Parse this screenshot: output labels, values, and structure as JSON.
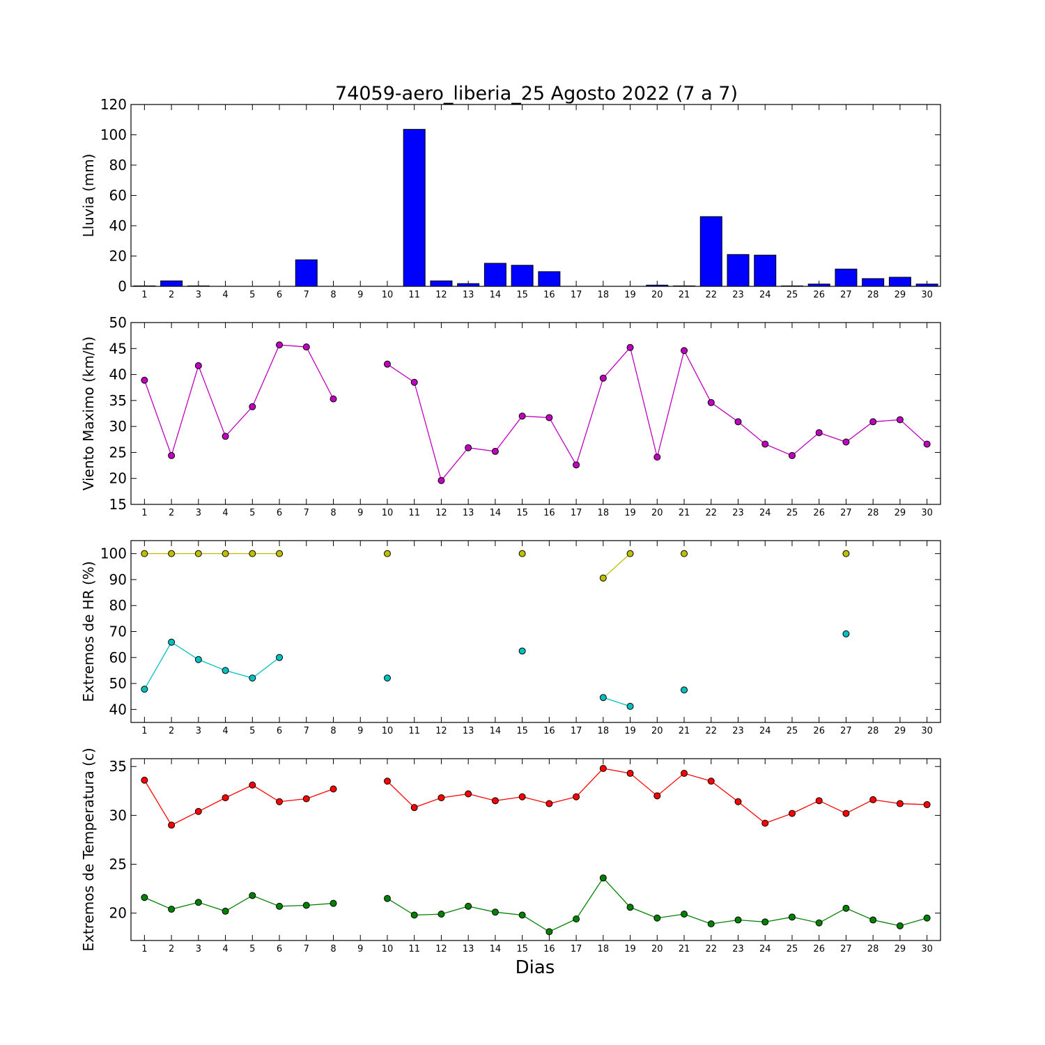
{
  "figure_title": "74059-aero_liberia_25 Agosto 2022  (7 a 7)",
  "xlabel": "Dias",
  "colors": {
    "rain": "#0000ff",
    "wind": "#bf00bf",
    "hr_max": "#bfbf00",
    "hr_min": "#00bfbf",
    "temp_max": "#ff0000",
    "temp_min": "#008000"
  },
  "chart_data": [
    {
      "type": "bar",
      "ylabel": "Lluvia (mm)",
      "ylim": [
        0,
        120
      ],
      "yticks": [
        0,
        20,
        40,
        60,
        80,
        100,
        120
      ],
      "x": [
        1,
        2,
        3,
        4,
        5,
        6,
        7,
        8,
        9,
        10,
        11,
        12,
        13,
        14,
        15,
        16,
        17,
        18,
        19,
        20,
        21,
        22,
        23,
        24,
        25,
        26,
        27,
        28,
        29,
        30
      ],
      "xtick_labels": [
        "1",
        "2",
        "3",
        "4",
        "5",
        "6",
        "7",
        "8",
        "9",
        "10",
        "11",
        "12",
        "13",
        "14",
        "15",
        "16",
        "17",
        "18",
        "19",
        "20",
        "21",
        "22",
        "23",
        "24",
        "25",
        "26",
        "27",
        "28",
        "29",
        "30"
      ],
      "values": [
        0.3,
        3.6,
        0.3,
        0,
        0,
        0,
        17.5,
        0,
        0,
        0,
        103.6,
        3.6,
        1.8,
        15.2,
        13.9,
        9.7,
        0,
        0,
        0,
        0.8,
        0.3,
        46.0,
        21.0,
        20.6,
        0.3,
        1.5,
        11.4,
        5.1,
        6.0,
        1.5
      ]
    },
    {
      "type": "line",
      "ylabel": "Viento Maximo (km/h)",
      "ylim": [
        15,
        50
      ],
      "yticks": [
        15,
        20,
        25,
        30,
        35,
        40,
        45,
        50
      ],
      "x": [
        1,
        2,
        3,
        4,
        5,
        6,
        7,
        8,
        9,
        10,
        11,
        12,
        13,
        14,
        15,
        16,
        17,
        18,
        19,
        20,
        21,
        22,
        23,
        24,
        25,
        26,
        27,
        28,
        29,
        30
      ],
      "xtick_labels": [
        "1",
        "2",
        "3",
        "4",
        "5",
        "6",
        "7",
        "8",
        "9",
        "10",
        "11",
        "12",
        "13",
        "14",
        "15",
        "16",
        "17",
        "18",
        "19",
        "20",
        "21",
        "22",
        "23",
        "24",
        "25",
        "26",
        "27",
        "28",
        "29",
        "30"
      ],
      "series": [
        {
          "values": [
            38.9,
            24.4,
            41.7,
            28.1,
            33.8,
            45.7,
            45.3,
            35.3,
            null,
            42.0,
            38.5,
            19.6,
            25.9,
            25.2,
            32.0,
            31.7,
            22.6,
            39.3,
            45.2,
            24.1,
            44.6,
            34.6,
            30.9,
            26.6,
            24.4,
            28.8,
            27.0,
            30.9,
            31.3,
            26.6
          ]
        }
      ]
    },
    {
      "type": "line",
      "ylabel": "Extremos de HR (%)",
      "ylim": [
        35,
        105
      ],
      "yticks": [
        40,
        50,
        60,
        70,
        80,
        90,
        100
      ],
      "x": [
        1,
        2,
        3,
        4,
        5,
        6,
        7,
        8,
        9,
        10,
        11,
        12,
        13,
        14,
        15,
        16,
        17,
        18,
        19,
        20,
        21,
        22,
        23,
        24,
        25,
        26,
        27,
        28,
        29,
        30
      ],
      "xtick_labels": [
        "1",
        "2",
        "3",
        "4",
        "5",
        "6",
        "7",
        "8",
        "9",
        "10",
        "11",
        "12",
        "13",
        "14",
        "15",
        "16",
        "17",
        "18",
        "19",
        "20",
        "21",
        "22",
        "23",
        "24",
        "25",
        "26",
        "27",
        "28",
        "29",
        "30"
      ],
      "series": [
        {
          "values": [
            100,
            100,
            100,
            100,
            100,
            100,
            null,
            null,
            null,
            100,
            null,
            null,
            null,
            null,
            100,
            null,
            null,
            90.6,
            100,
            null,
            100,
            null,
            null,
            null,
            null,
            null,
            100,
            null,
            null,
            null
          ]
        },
        {
          "values": [
            47.8,
            65.9,
            59.2,
            55.0,
            52.1,
            60.0,
            null,
            null,
            null,
            52.1,
            null,
            null,
            null,
            null,
            62.5,
            null,
            null,
            44.6,
            41.2,
            null,
            47.5,
            null,
            null,
            null,
            null,
            null,
            69.1,
            null,
            null,
            null
          ]
        }
      ]
    },
    {
      "type": "line",
      "ylabel": "Extremos de Temperatura (c)",
      "ylim": [
        17.2,
        35.8
      ],
      "yticks": [
        20,
        25,
        30,
        35
      ],
      "x": [
        1,
        2,
        3,
        4,
        5,
        6,
        7,
        8,
        9,
        10,
        11,
        12,
        13,
        14,
        15,
        16,
        17,
        18,
        19,
        20,
        21,
        22,
        23,
        24,
        25,
        26,
        27,
        28,
        29,
        30
      ],
      "xtick_labels": [
        "1",
        "2",
        "3",
        "4",
        "5",
        "6",
        "7",
        "8",
        "9",
        "10",
        "11",
        "12",
        "13",
        "14",
        "15",
        "16",
        "17",
        "18",
        "19",
        "20",
        "21",
        "22",
        "23",
        "24",
        "25",
        "26",
        "27",
        "28",
        "29",
        "30"
      ],
      "series": [
        {
          "values": [
            33.6,
            29.0,
            30.4,
            31.8,
            33.1,
            31.4,
            31.7,
            32.7,
            null,
            33.5,
            30.8,
            31.8,
            32.2,
            31.5,
            31.9,
            31.2,
            31.9,
            34.8,
            34.3,
            32.0,
            34.3,
            33.5,
            31.4,
            29.2,
            30.2,
            31.5,
            30.2,
            31.6,
            31.2,
            31.1
          ]
        },
        {
          "values": [
            21.6,
            20.4,
            21.1,
            20.2,
            21.8,
            20.7,
            20.8,
            21.0,
            null,
            21.5,
            19.8,
            19.9,
            20.7,
            20.1,
            19.8,
            18.1,
            19.4,
            23.6,
            20.6,
            19.5,
            19.9,
            18.9,
            19.3,
            19.1,
            19.6,
            19.0,
            20.5,
            19.3,
            18.7,
            19.5
          ]
        }
      ]
    }
  ]
}
